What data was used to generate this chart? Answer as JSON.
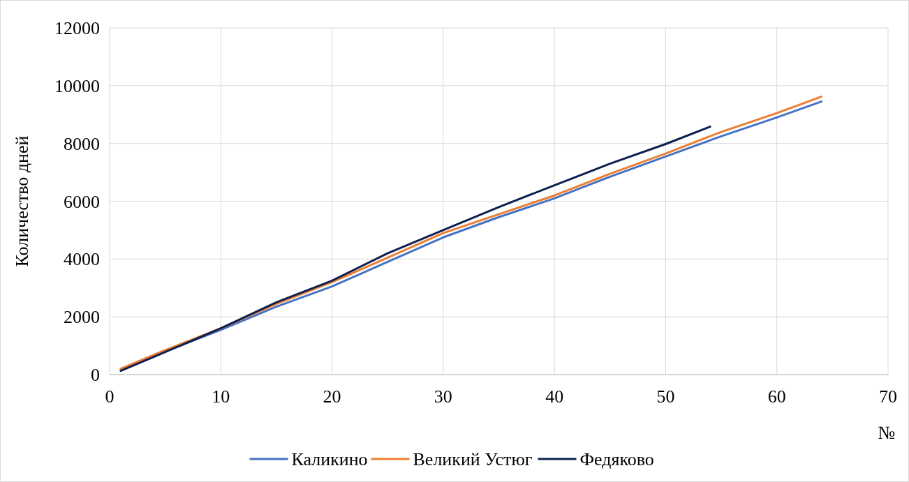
{
  "chart_data": {
    "type": "line",
    "xlabel": "№",
    "ylabel": "Количество дней",
    "xlim": [
      0,
      70
    ],
    "xticks": [
      0,
      10,
      20,
      30,
      40,
      50,
      60,
      70
    ],
    "ylim": [
      0,
      12000
    ],
    "yticks": [
      0,
      2000,
      4000,
      6000,
      8000,
      10000,
      12000
    ],
    "grid": true,
    "legend": "bottom",
    "marker": "none",
    "line_style": "solid",
    "series": [
      {
        "name": "Каликино",
        "color": "#4472c4",
        "x": [
          1,
          5,
          10,
          15,
          20,
          25,
          30,
          35,
          40,
          42,
          45,
          50,
          55,
          60,
          64
        ],
        "values": [
          150,
          800,
          1550,
          2350,
          3050,
          3900,
          4750,
          5450,
          6100,
          6400,
          6850,
          7550,
          8250,
          8900,
          9450
        ]
      },
      {
        "name": "Великий Устюг",
        "color": "#ed7d31",
        "x": [
          1,
          5,
          10,
          15,
          20,
          25,
          30,
          35,
          40,
          45,
          50,
          55,
          60,
          64
        ],
        "values": [
          200,
          850,
          1600,
          2450,
          3200,
          4050,
          4900,
          5550,
          6200,
          6950,
          7650,
          8400,
          9050,
          9620
        ]
      },
      {
        "name": "Федяково",
        "color": "#0d1f4f",
        "x": [
          1,
          5,
          10,
          15,
          20,
          25,
          30,
          35,
          40,
          45,
          50,
          54
        ],
        "values": [
          130,
          780,
          1600,
          2500,
          3250,
          4200,
          5000,
          5800,
          6550,
          7300,
          7980,
          8580
        ]
      }
    ]
  }
}
